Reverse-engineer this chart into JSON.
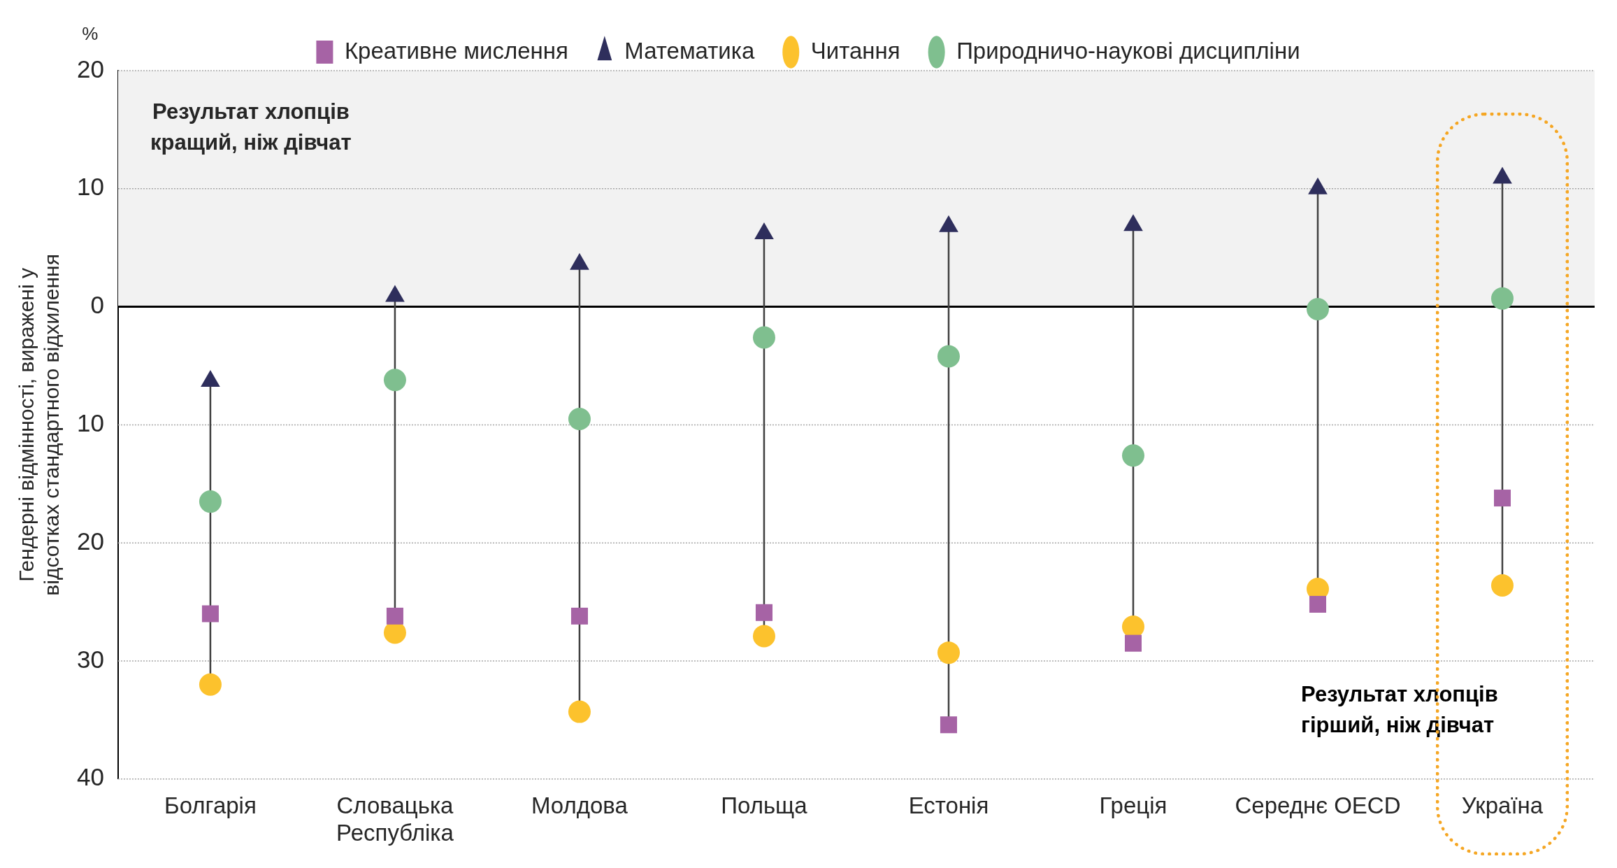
{
  "chart_data": {
    "type": "scatter",
    "ylabel": "Гендерні відмінності, виражені у відсотках стандартного відхилення",
    "categories": [
      "Болгарія",
      "Словацька Республіка",
      "Молдова",
      "Польща",
      "Естонія",
      "Греція",
      "Середнє OECD",
      "Україна"
    ],
    "series": [
      {
        "name": "Креативне мислення",
        "color": "#a663a5",
        "marker": "square",
        "values": [
          -26,
          -26.2,
          -26.2,
          -25.9,
          -35.4,
          -28.5,
          -25.2,
          -16.2
        ]
      },
      {
        "name": "Математика",
        "color": "#2e2e5c",
        "marker": "triangle",
        "values": [
          -6.3,
          0.9,
          3.6,
          6.2,
          6.8,
          6.9,
          10,
          10.9
        ]
      },
      {
        "name": "Читання",
        "color": "#fcc22d",
        "marker": "circle",
        "values": [
          -32,
          -27.6,
          -34.3,
          -27.9,
          -29.3,
          -27.1,
          -23.9,
          -23.6
        ]
      },
      {
        "name": "Природничо-наукові дисципліни",
        "color": "#7fbf8f",
        "marker": "circle",
        "values": [
          -16.5,
          -6.2,
          -9.5,
          -2.6,
          -4.2,
          -12.6,
          -0.2,
          0.7
        ]
      }
    ],
    "ylim": [
      -40,
      20
    ],
    "yticks": [
      {
        "value": -40,
        "label": "40"
      },
      {
        "value": -30,
        "label": "30"
      },
      {
        "value": -20,
        "label": "20"
      },
      {
        "value": -10,
        "label": "10"
      },
      0,
      10,
      20
    ],
    "grid": "y",
    "legend": "top",
    "bands": [
      {
        "axis": "y",
        "from": 0,
        "to": 20,
        "label": "Результат хлопців кращий, ніж дівчат",
        "color": "#f2f2f2"
      }
    ],
    "ref_lines": [
      {
        "axis": "y",
        "value": 0,
        "color": "#000000"
      }
    ],
    "annotations": [
      "%",
      "Результат хлопців гірший, ніж дівчат"
    ]
  }
}
